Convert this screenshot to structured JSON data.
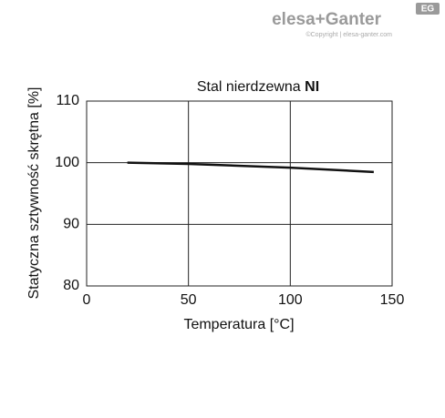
{
  "logo": {
    "brand": "elesa+Ganter",
    "copyright": "©Copyright | elesa-ganter.com",
    "badge": "EG"
  },
  "chart_data": {
    "type": "line",
    "title": "Stal nierdzewna",
    "title_emphasis": "NI",
    "xlabel": "Temperatura [°C]",
    "ylabel": "Statyczna sztywność skrętna [%]",
    "x": [
      20,
      50,
      100,
      141
    ],
    "values": [
      100,
      99.8,
      99.2,
      98.5
    ],
    "color": "#111111",
    "xlim": [
      0,
      150
    ],
    "xticks": [
      0,
      50,
      100,
      150
    ],
    "ylim": [
      80,
      110
    ],
    "yticks": [
      80,
      90,
      100,
      110
    ],
    "grid": true
  }
}
